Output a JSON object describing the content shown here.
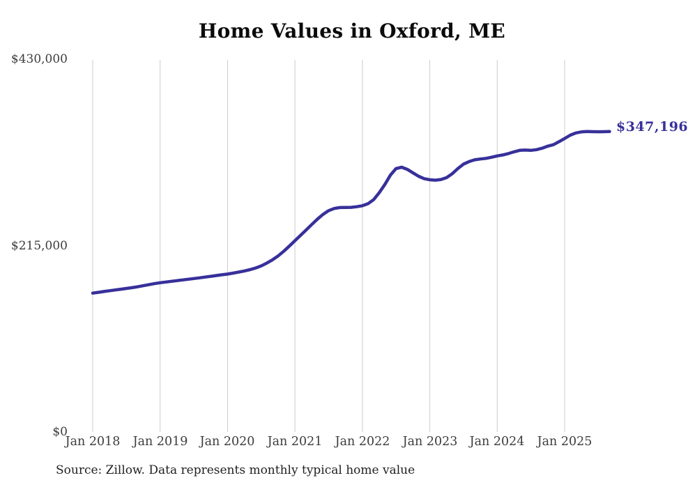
{
  "title": "Home Values in Oxford, ME",
  "source_note": "Source: Zillow. Data represents monthly typical home value",
  "end_label": "$347,196",
  "colors": {
    "line": "#37309a",
    "grid": "#cccccc",
    "axis_text": "#3c3c3c",
    "title_text": "#0b0b0b",
    "source_text": "#1f1f1f",
    "background": "#ffffff"
  },
  "chart_data": {
    "type": "line",
    "title": "Home Values in Oxford, ME",
    "xlabel": "",
    "ylabel": "",
    "ylim": [
      0,
      430000
    ],
    "grid": "vertical-only",
    "legend": "none",
    "y_tick_labels": [
      "$430,000",
      "$215,000",
      "$0"
    ],
    "y_tick_values": [
      430000,
      215000,
      0
    ],
    "x_tick_labels": [
      "Jan 2018",
      "Jan 2019",
      "Jan 2020",
      "Jan 2021",
      "Jan 2022",
      "Jan 2023",
      "Jan 2024",
      "Jan 2025"
    ],
    "x_start_month": "2018-01",
    "x_end_month": "2025-09",
    "end_value": 347196,
    "series": [
      {
        "name": "Monthly typical home value",
        "values": [
          160500,
          161400,
          162300,
          163200,
          164100,
          165000,
          165900,
          166800,
          167800,
          169000,
          170200,
          171400,
          172500,
          173300,
          174100,
          174900,
          175700,
          176500,
          177300,
          178100,
          179000,
          179900,
          180800,
          181700,
          182500,
          183600,
          184800,
          186100,
          187600,
          189500,
          192000,
          195200,
          199000,
          203500,
          208800,
          214800,
          221000,
          227200,
          233500,
          239800,
          246000,
          251500,
          255800,
          258300,
          259400,
          259500,
          259600,
          260300,
          261500,
          263800,
          268500,
          276500,
          286000,
          297000,
          304500,
          306000,
          303500,
          299500,
          295500,
          292800,
          291500,
          291000,
          291800,
          294000,
          298500,
          304500,
          309500,
          312500,
          314500,
          315500,
          316200,
          317500,
          319000,
          320200,
          321800,
          323800,
          325500,
          325800,
          325500,
          326300,
          328000,
          330300,
          332000,
          335500,
          339200,
          343000,
          345600,
          346800,
          347200,
          347100,
          347000,
          347100,
          347196
        ]
      }
    ]
  }
}
